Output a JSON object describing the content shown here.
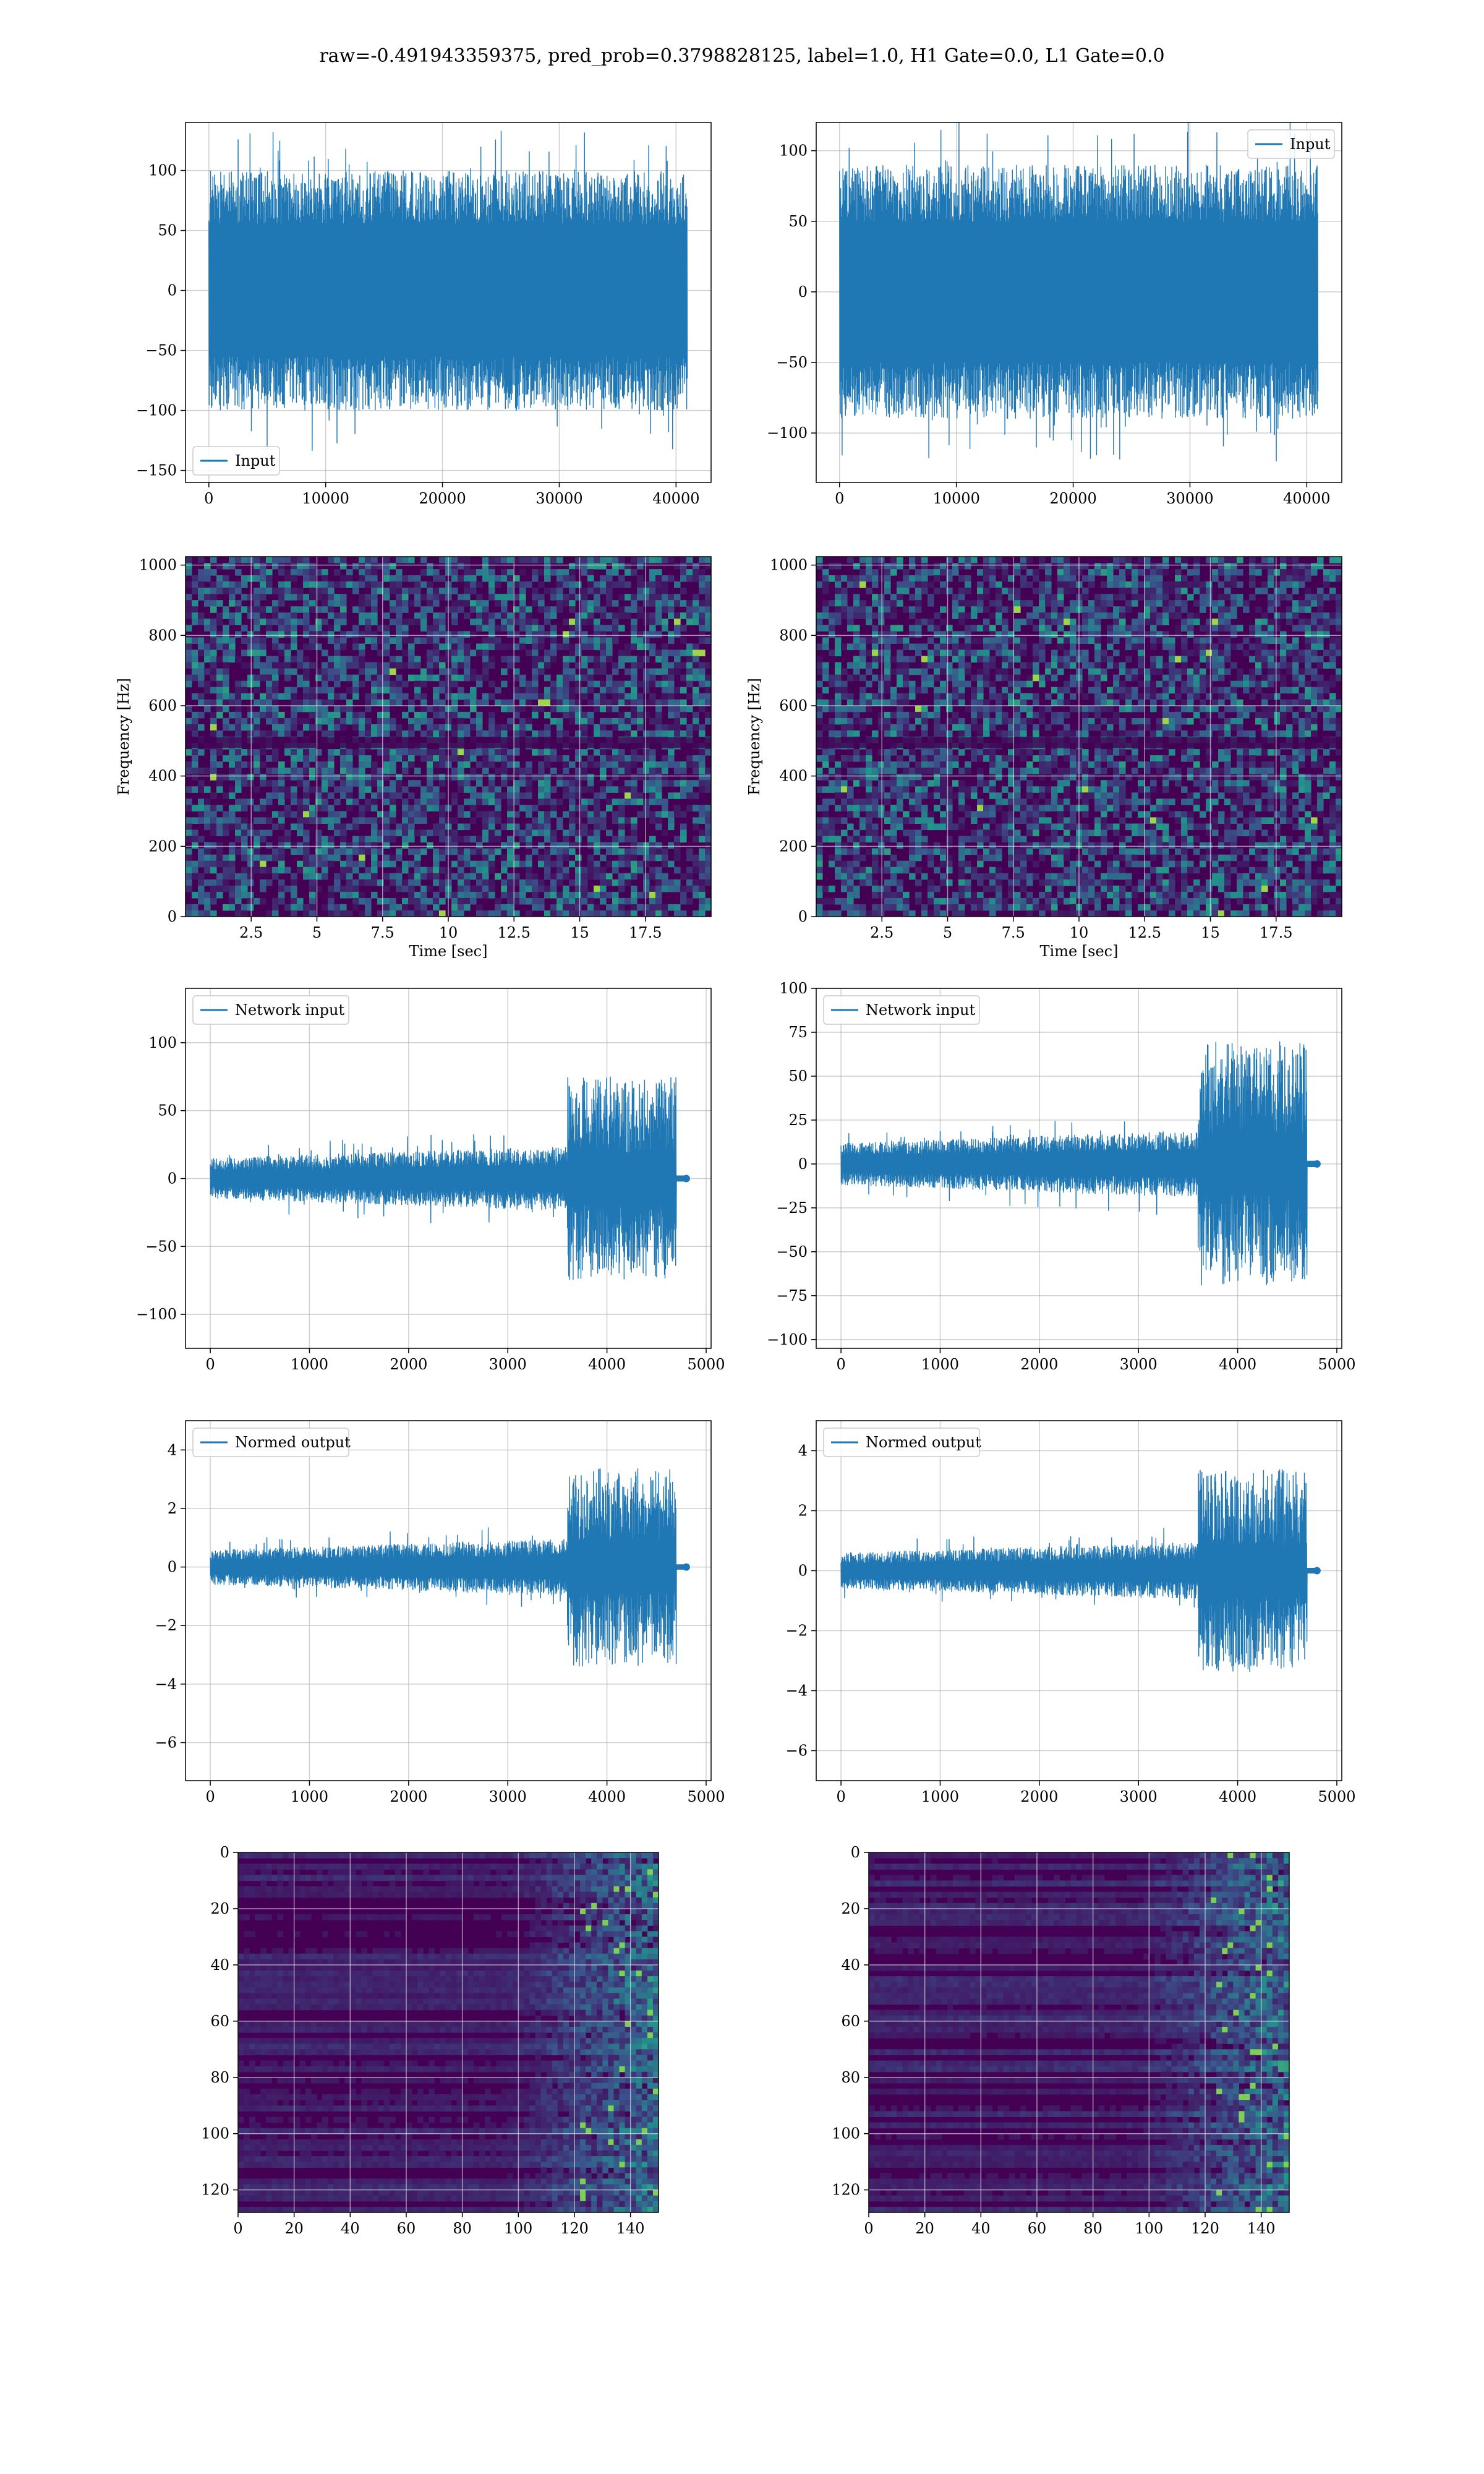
{
  "figure": {
    "suptitle": "raw=-0.491943359375, pred_prob=0.3798828125, label=1.0, H1 Gate=0.0, L1 Gate=0.0"
  },
  "colors": {
    "line": "#1f77b4",
    "grid": "#d9d9d9",
    "viridis": [
      "#440154",
      "#3b528b",
      "#21918c",
      "#5ec962",
      "#fde725"
    ]
  },
  "chart_data": [
    {
      "id": "input-h1",
      "type": "line",
      "xlim": [
        -2000,
        43000
      ],
      "ylim": [
        -160,
        140
      ],
      "xticks": [
        0,
        10000,
        20000,
        30000,
        40000
      ],
      "yticks": [
        -150,
        -100,
        -50,
        0,
        50,
        100
      ],
      "x_range": [
        0,
        40960
      ],
      "envelope": [
        -100,
        100
      ],
      "series": [
        {
          "name": "Input"
        }
      ],
      "legend": "lower-left",
      "grid": true,
      "xlabel": "",
      "ylabel": ""
    },
    {
      "id": "input-l1",
      "type": "line",
      "xlim": [
        -2000,
        43000
      ],
      "ylim": [
        -135,
        120
      ],
      "xticks": [
        0,
        10000,
        20000,
        30000,
        40000
      ],
      "yticks": [
        -100,
        -50,
        0,
        50,
        100
      ],
      "x_range": [
        0,
        40960
      ],
      "envelope": [
        -90,
        90
      ],
      "series": [
        {
          "name": "Input"
        }
      ],
      "legend": "upper-right",
      "grid": true,
      "xlabel": "",
      "ylabel": ""
    },
    {
      "id": "spectrogram-h1",
      "type": "heatmap",
      "xlim": [
        0,
        20
      ],
      "ylim": [
        0,
        1024
      ],
      "xticks": [
        2.5,
        5.0,
        7.5,
        10.0,
        12.5,
        15.0,
        17.5
      ],
      "yticks": [
        0,
        200,
        400,
        600,
        800,
        1000
      ],
      "xlabel": "Time [sec]",
      "ylabel": "Frequency [Hz]",
      "grid": true
    },
    {
      "id": "spectrogram-l1",
      "type": "heatmap",
      "xlim": [
        0,
        20
      ],
      "ylim": [
        0,
        1024
      ],
      "xticks": [
        2.5,
        5.0,
        7.5,
        10.0,
        12.5,
        15.0,
        17.5
      ],
      "yticks": [
        0,
        200,
        400,
        600,
        800,
        1000
      ],
      "xlabel": "Time [sec]",
      "ylabel": "Frequency [Hz]",
      "grid": true
    },
    {
      "id": "network-input-h1",
      "type": "line",
      "xlim": [
        -250,
        5050
      ],
      "ylim": [
        -125,
        140
      ],
      "xticks": [
        0,
        1000,
        2000,
        3000,
        4000,
        5000
      ],
      "yticks": [
        -100,
        -50,
        0,
        50,
        100
      ],
      "x_range": [
        0,
        4800
      ],
      "signal_end": 4700,
      "quiet_amp": 15,
      "burst_start": 3600,
      "burst_amp": 75,
      "series": [
        {
          "name": "Network input"
        }
      ],
      "legend": "upper-left",
      "grid": true,
      "xlabel": "",
      "ylabel": ""
    },
    {
      "id": "network-input-l1",
      "type": "line",
      "xlim": [
        -250,
        5050
      ],
      "ylim": [
        -105,
        100
      ],
      "xticks": [
        0,
        1000,
        2000,
        3000,
        4000,
        5000
      ],
      "yticks": [
        -100,
        -75,
        -50,
        -25,
        0,
        25,
        50,
        75,
        100
      ],
      "x_range": [
        0,
        4800
      ],
      "signal_end": 4700,
      "quiet_amp": 12,
      "burst_start": 3600,
      "burst_amp": 70,
      "series": [
        {
          "name": "Network input"
        }
      ],
      "legend": "upper-left",
      "grid": true,
      "xlabel": "",
      "ylabel": ""
    },
    {
      "id": "normed-output-h1",
      "type": "line",
      "xlim": [
        -250,
        5050
      ],
      "ylim": [
        -7.3,
        5.0
      ],
      "xticks": [
        0,
        1000,
        2000,
        3000,
        4000,
        5000
      ],
      "yticks": [
        -6,
        -4,
        -2,
        0,
        2,
        4
      ],
      "x_range": [
        0,
        4800
      ],
      "signal_end": 4700,
      "quiet_amp": 0.6,
      "burst_start": 3600,
      "burst_amp": 3.4,
      "series": [
        {
          "name": "Normed output"
        }
      ],
      "legend": "upper-left",
      "grid": true,
      "xlabel": "",
      "ylabel": ""
    },
    {
      "id": "normed-output-l1",
      "type": "line",
      "xlim": [
        -250,
        5050
      ],
      "ylim": [
        -7.0,
        5.0
      ],
      "xticks": [
        0,
        1000,
        2000,
        3000,
        4000,
        5000
      ],
      "yticks": [
        -6,
        -4,
        -2,
        0,
        2,
        4
      ],
      "x_range": [
        0,
        4800
      ],
      "signal_end": 4700,
      "quiet_amp": 0.6,
      "burst_start": 3600,
      "burst_amp": 3.4,
      "series": [
        {
          "name": "Normed output"
        }
      ],
      "legend": "upper-left",
      "grid": true,
      "xlabel": "",
      "ylabel": ""
    },
    {
      "id": "feature-map-h1",
      "type": "heatmap",
      "xlim": [
        0,
        150
      ],
      "ylim": [
        128,
        0
      ],
      "xticks": [
        0,
        20,
        40,
        60,
        80,
        100,
        120,
        140
      ],
      "yticks": [
        0,
        20,
        40,
        60,
        80,
        100,
        120
      ],
      "grid": true,
      "xlabel": "",
      "ylabel": ""
    },
    {
      "id": "feature-map-l1",
      "type": "heatmap",
      "xlim": [
        0,
        150
      ],
      "ylim": [
        128,
        0
      ],
      "xticks": [
        0,
        20,
        40,
        60,
        80,
        100,
        120,
        140
      ],
      "yticks": [
        0,
        20,
        40,
        60,
        80,
        100,
        120
      ],
      "grid": true,
      "xlabel": "",
      "ylabel": ""
    }
  ]
}
